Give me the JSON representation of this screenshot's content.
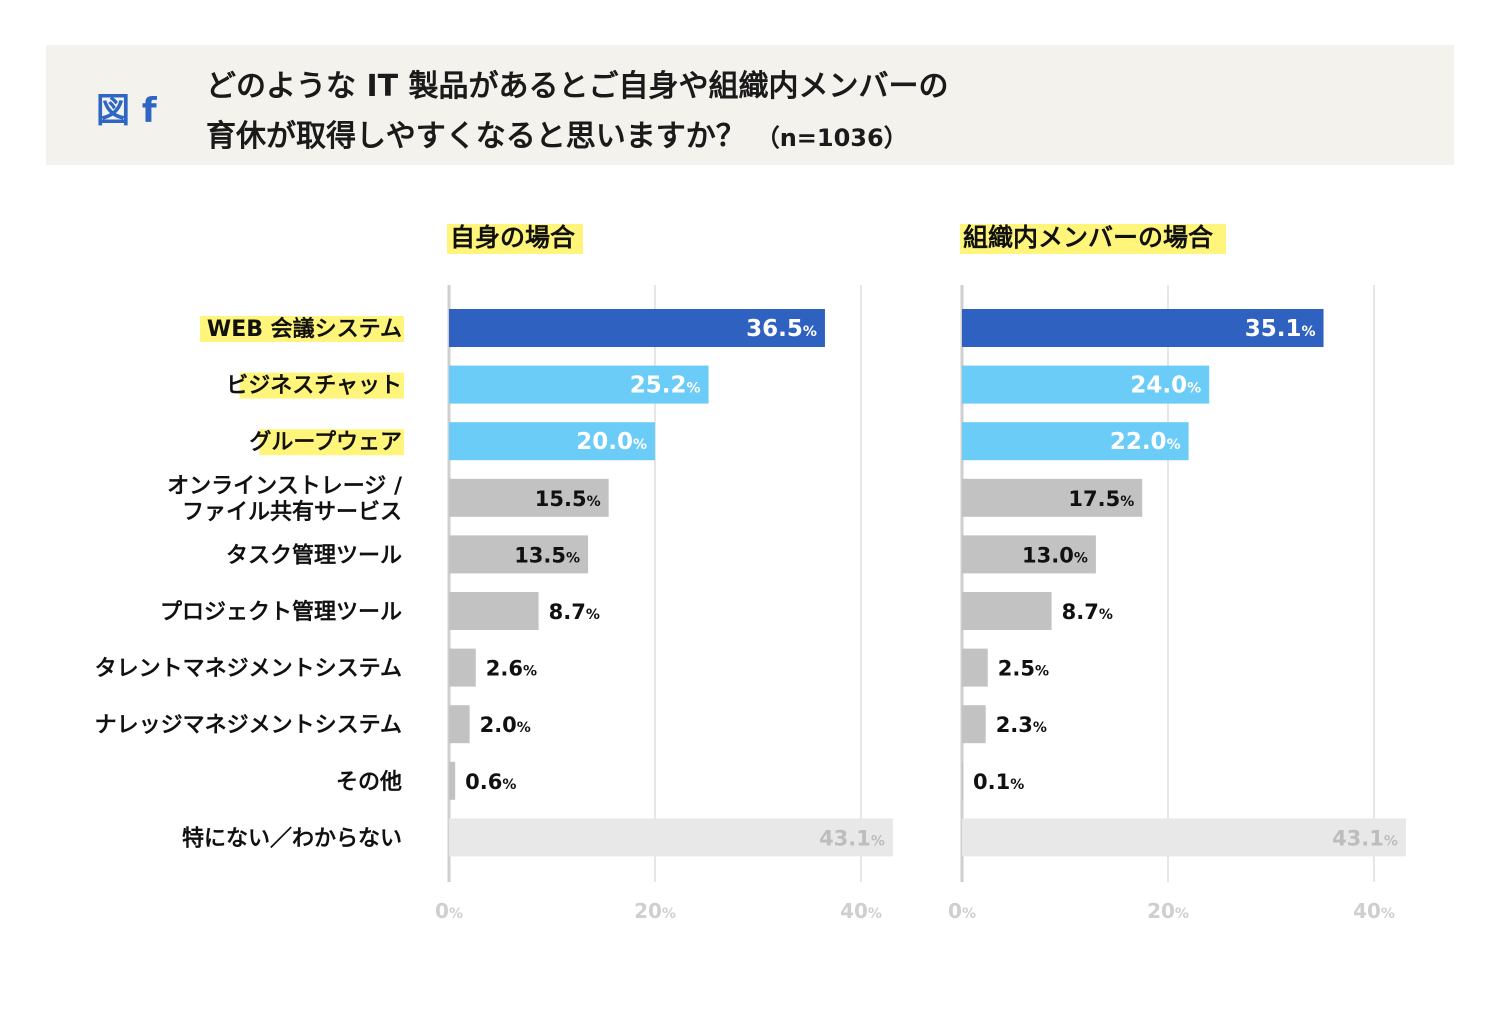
{
  "figure_label": "図 f",
  "title_line1": "どのような IT 製品があるとご自身や組織内メンバーの",
  "title_line2": "育休が取得しやすくなると思いますか？",
  "title_n": "（n=1036）",
  "colors": {
    "dark_blue": "#2f62c0",
    "light_blue": "#6accf7",
    "gray": "#c2c2c2",
    "light_gray": "#e8e8e8",
    "highlight": "#fff57a",
    "axis_label": "#cfcfcf"
  },
  "chart_data": [
    {
      "type": "bar",
      "orientation": "horizontal",
      "title": "自身の場合",
      "categories": [
        "WEB 会議システム",
        "ビジネスチャット",
        "グループウェア",
        "オンラインストレージ /\nファイル共有サービス",
        "タスク管理ツール",
        "プロジェクト管理ツール",
        "タレントマネジメントシステム",
        "ナレッジマネジメントシステム",
        "その他",
        "特にない／わからない"
      ],
      "values": [
        36.5,
        25.2,
        20.0,
        15.5,
        13.5,
        8.7,
        2.6,
        2.0,
        0.6,
        43.1
      ],
      "value_labels": [
        "36.5",
        "25.2",
        "20.0",
        "15.5",
        "13.5",
        "8.7",
        "2.6",
        "2.0",
        "0.6",
        "43.1"
      ],
      "unit": "%",
      "xlim": [
        0,
        40
      ],
      "xticks": [
        "0",
        "20",
        "40"
      ],
      "grid": true
    },
    {
      "type": "bar",
      "orientation": "horizontal",
      "title": "組織内メンバーの場合",
      "categories": [
        "WEB 会議システム",
        "ビジネスチャット",
        "グループウェア",
        "オンラインストレージ /\nファイル共有サービス",
        "タスク管理ツール",
        "プロジェクト管理ツール",
        "タレントマネジメントシステム",
        "ナレッジマネジメントシステム",
        "その他",
        "特にない／わからない"
      ],
      "values": [
        35.1,
        24.0,
        22.0,
        17.5,
        13.0,
        8.7,
        2.5,
        2.3,
        0.1,
        43.1
      ],
      "value_labels": [
        "35.1",
        "24.0",
        "22.0",
        "17.5",
        "13.0",
        "8.7",
        "2.5",
        "2.3",
        "0.1",
        "43.1"
      ],
      "unit": "%",
      "xlim": [
        0,
        40
      ],
      "xticks": [
        "0",
        "20",
        "40"
      ],
      "grid": true
    }
  ],
  "highlighted_categories": [
    0,
    1,
    2
  ],
  "bar_color_keys": [
    "dark_blue",
    "light_blue",
    "light_blue",
    "gray",
    "gray",
    "gray",
    "gray",
    "gray",
    "gray",
    "light_gray"
  ]
}
